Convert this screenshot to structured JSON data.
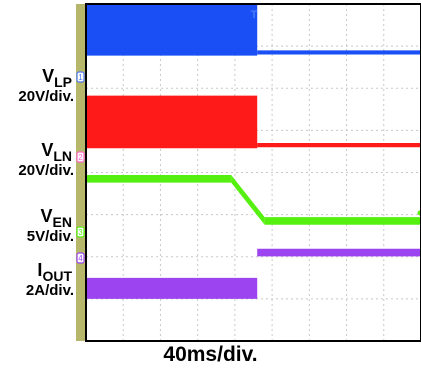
{
  "chart_data": {
    "type": "line",
    "title": "",
    "xlabel": "40ms/div.",
    "ylabel": "",
    "grid": true,
    "x_divisions": 9,
    "y_divisions": 8,
    "x_unit": "div",
    "xlim": [
      0,
      9
    ],
    "trigger_marker": "T",
    "colors": {
      "frame": "#b6b76a",
      "background": "#ffffff",
      "grid": "#c8c8c8"
    },
    "channels": [
      {
        "id": "1",
        "name_main": "V",
        "name_sub": "LP",
        "scale": "20V/div.",
        "color": "#1a4ff5",
        "marker_color": "#4a7af7",
        "description_points": [
          {
            "x": 0.0,
            "y_div": 7.4,
            "band_div": 1.25
          },
          {
            "x": 4.6,
            "y_div": 7.4,
            "band_div": 1.25
          },
          {
            "x": 4.6,
            "y_div": 6.85,
            "band_div": 0.1
          },
          {
            "x": 9.0,
            "y_div": 6.85,
            "band_div": 0.1
          }
        ]
      },
      {
        "id": "2",
        "name_main": "V",
        "name_sub": "LN",
        "scale": "20V/div.",
        "color": "#ff1a1a",
        "marker_color": "#ff66cc",
        "description_points": [
          {
            "x": 0.0,
            "y_div": 5.2,
            "band_div": 1.25
          },
          {
            "x": 4.6,
            "y_div": 5.2,
            "band_div": 1.25
          },
          {
            "x": 4.6,
            "y_div": 4.65,
            "band_div": 0.1
          },
          {
            "x": 9.0,
            "y_div": 4.65,
            "band_div": 0.1
          }
        ]
      },
      {
        "id": "3",
        "name_main": "V",
        "name_sub": "EN",
        "scale": "5V/div.",
        "color": "#55f010",
        "marker_color": "#55f010",
        "description_points": [
          {
            "x": 0.0,
            "y_div": 3.85,
            "band_div": 0.18
          },
          {
            "x": 3.9,
            "y_div": 3.85,
            "band_div": 0.18
          },
          {
            "x": 4.8,
            "y_div": 2.85,
            "band_div": 0.18
          },
          {
            "x": 9.0,
            "y_div": 2.85,
            "band_div": 0.18
          }
        ]
      },
      {
        "id": "4",
        "name_main": "I",
        "name_sub": "OUT",
        "scale": "2A/div.",
        "color": "#9b44ef",
        "marker_color": "#9b44ef",
        "description_points": [
          {
            "x": 0.0,
            "y_div": 1.25,
            "band_div": 0.5
          },
          {
            "x": 4.6,
            "y_div": 1.25,
            "band_div": 0.5
          },
          {
            "x": 4.6,
            "y_div": 2.1,
            "band_div": 0.18
          },
          {
            "x": 9.0,
            "y_div": 2.1,
            "band_div": 0.18
          }
        ]
      }
    ]
  }
}
